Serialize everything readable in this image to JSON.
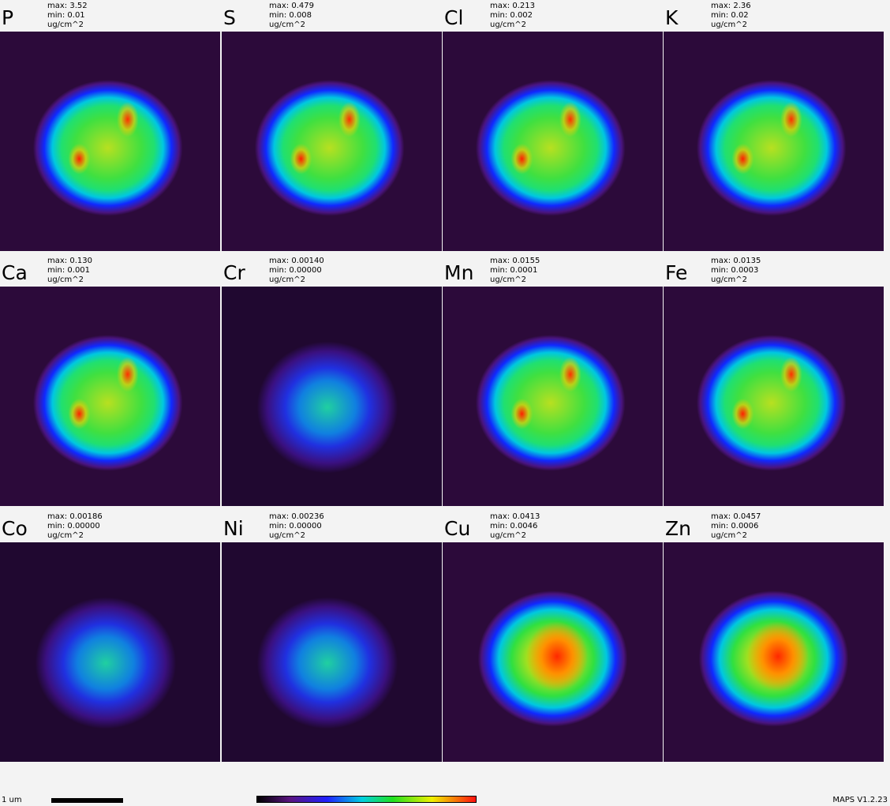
{
  "panels": [
    {
      "element": "P",
      "max": "max: 3.52",
      "min": "min: 0.01",
      "unit": "ug/cm^2"
    },
    {
      "element": "S",
      "max": "max: 0.479",
      "min": "min: 0.008",
      "unit": "ug/cm^2"
    },
    {
      "element": "Cl",
      "max": "max: 0.213",
      "min": "min: 0.002",
      "unit": "ug/cm^2"
    },
    {
      "element": "K",
      "max": "max: 2.36",
      "min": "min: 0.02",
      "unit": "ug/cm^2"
    },
    {
      "element": "Ca",
      "max": "max: 0.130",
      "min": "min: 0.001",
      "unit": "ug/cm^2"
    },
    {
      "element": "Cr",
      "max": "max: 0.00140",
      "min": "min: 0.00000",
      "unit": "ug/cm^2"
    },
    {
      "element": "Mn",
      "max": "max: 0.0155",
      "min": "min: 0.0001",
      "unit": "ug/cm^2"
    },
    {
      "element": "Fe",
      "max": "max: 0.0135",
      "min": "min: 0.0003",
      "unit": "ug/cm^2"
    },
    {
      "element": "Co",
      "max": "max: 0.00186",
      "min": "min: 0.00000",
      "unit": "ug/cm^2"
    },
    {
      "element": "Ni",
      "max": "max: 0.00236",
      "min": "min: 0.00000",
      "unit": "ug/cm^2"
    },
    {
      "element": "Cu",
      "max": "max: 0.0413",
      "min": "min: 0.0046",
      "unit": "ug/cm^2"
    },
    {
      "element": "Zn",
      "max": "max: 0.0457",
      "min": "min: 0.0006",
      "unit": "ug/cm^2"
    }
  ],
  "footer": {
    "scale_label": "1 um",
    "version": "MAPS V1.2.23"
  }
}
